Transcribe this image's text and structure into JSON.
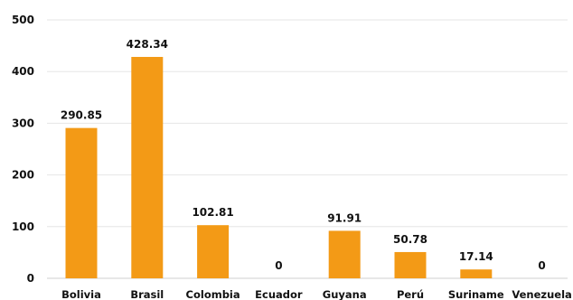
{
  "chart_data": {
    "type": "bar",
    "categories": [
      "Bolivia",
      "Brasil",
      "Colombia",
      "Ecuador",
      "Guyana",
      "Perú",
      "Suriname",
      "Venezuela"
    ],
    "values": [
      290.85,
      428.34,
      102.81,
      0,
      91.91,
      50.78,
      17.14,
      0
    ],
    "value_labels": [
      "290.85",
      "428.34",
      "102.81",
      "0",
      "91.91",
      "50.78",
      "17.14",
      "0"
    ],
    "ylim": [
      0,
      500
    ],
    "yticks": [
      0,
      100,
      200,
      300,
      400,
      500
    ],
    "grid": true,
    "bar_color": "#F39A16"
  }
}
